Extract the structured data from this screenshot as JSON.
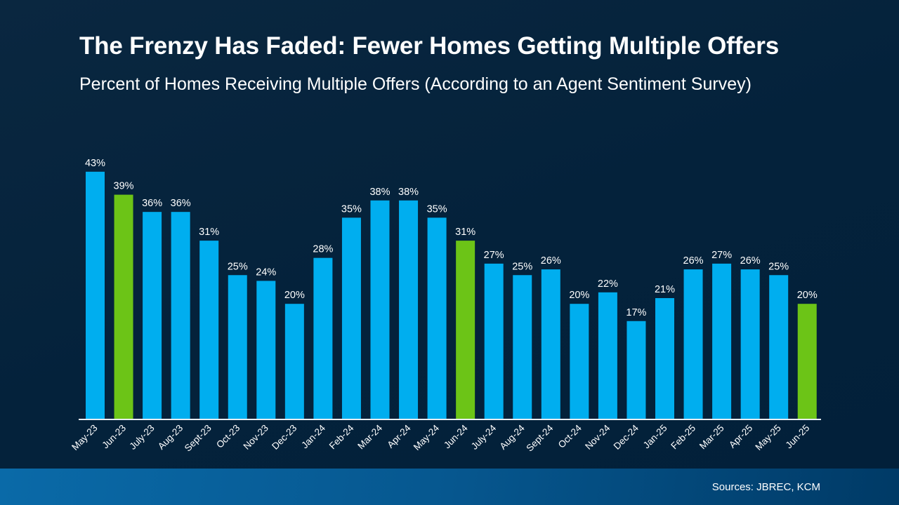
{
  "chart_data": {
    "type": "bar",
    "title": "The Frenzy Has Faded: Fewer Homes Getting Multiple Offers",
    "subtitle": "Percent of Homes Receiving Multiple Offers (According to an Agent Sentiment Survey)",
    "categories": [
      "May-23",
      "Jun-23",
      "July-23",
      "Aug-23",
      "Sept-23",
      "Oct-23",
      "Nov-23",
      "Dec-23",
      "Jan-24",
      "Feb-24",
      "Mar-24",
      "Apr-24",
      "May-24",
      "Jun-24",
      "July-24",
      "Aug-24",
      "Sept-24",
      "Oct-24",
      "Nov-24",
      "Dec-24",
      "Jan-25",
      "Feb-25",
      "Mar-25",
      "Apr-25",
      "May-25",
      "Jun-25"
    ],
    "values": [
      43,
      39,
      36,
      36,
      31,
      25,
      24,
      20,
      28,
      35,
      38,
      38,
      35,
      31,
      27,
      25,
      26,
      20,
      22,
      17,
      21,
      26,
      27,
      26,
      25,
      20
    ],
    "value_suffix": "%",
    "highlighted": [
      "Jun-23",
      "Jun-24",
      "Jun-25"
    ],
    "colors": {
      "bar": "#00aeef",
      "highlight": "#6cc417",
      "background": "#04223b"
    },
    "xlabel": "",
    "ylabel": "",
    "ylim": [
      0,
      45
    ],
    "grid": false,
    "legend": "none"
  },
  "footer": {
    "source": "Sources: JBREC, KCM"
  }
}
